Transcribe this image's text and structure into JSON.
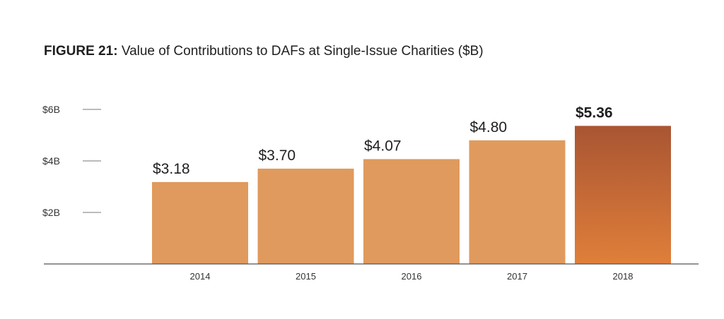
{
  "title": {
    "label": "FIGURE 21:",
    "text": "Value of Contributions to DAFs at Single-Issue Charities ($B)"
  },
  "chart_data": {
    "type": "bar",
    "title": "FIGURE 21: Value of Contributions to DAFs at Single-Issue Charities ($B)",
    "categories": [
      "2014",
      "2015",
      "2016",
      "2017",
      "2018"
    ],
    "values": [
      3.18,
      3.7,
      4.07,
      4.8,
      5.36
    ],
    "value_labels": [
      "$3.18",
      "$3.70",
      "$4.07",
      "$4.80",
      "$5.36"
    ],
    "highlight_index": 4,
    "ylim": [
      0,
      6
    ],
    "yticks": [
      {
        "value": 2,
        "label": "$2B"
      },
      {
        "value": 4,
        "label": "$4B"
      },
      {
        "value": 6,
        "label": "$6B"
      }
    ],
    "colors": {
      "bar": "#e09a5d",
      "highlight_top": "#a95533",
      "highlight_bottom": "#e07f3a",
      "axis": "#555555",
      "tick": "#777777"
    },
    "xlabel": "",
    "ylabel": "",
    "grid": false
  }
}
